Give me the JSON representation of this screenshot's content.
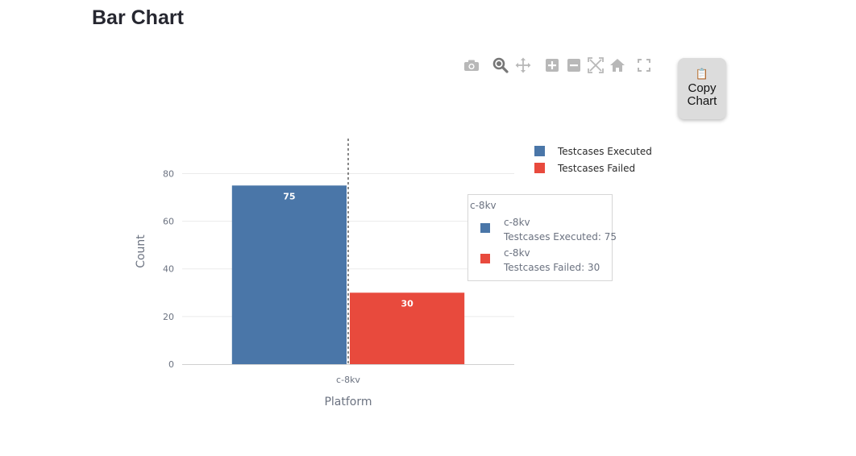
{
  "page": {
    "title": "Bar Chart"
  },
  "toolbar": {
    "buttons": [
      {
        "name": "camera-icon"
      },
      {
        "name": "zoom-icon"
      },
      {
        "name": "pan-icon"
      },
      {
        "name": "zoom-in-icon"
      },
      {
        "name": "zoom-out-icon"
      },
      {
        "name": "autoscale-icon"
      },
      {
        "name": "home-icon"
      },
      {
        "name": "fullscreen-icon"
      }
    ],
    "icon_color": "#b8b8b8",
    "active_icon_color": "#777777"
  },
  "copy_button": {
    "icon": "clipboard-icon",
    "glyph": "📋",
    "label": "Copy Chart"
  },
  "chart_data": {
    "type": "bar",
    "categories": [
      "c-8kv"
    ],
    "series": [
      {
        "name": "Testcases Executed",
        "values": [
          75
        ],
        "color": "#4a76a8"
      },
      {
        "name": "Testcases Failed",
        "values": [
          30
        ],
        "color": "#e84a3d"
      }
    ],
    "xlabel": "Platform",
    "ylabel": "Count",
    "ylim": [
      0,
      92
    ],
    "yticks": [
      0,
      20,
      40,
      60,
      80
    ],
    "grid": true,
    "legend_position": "top-right",
    "hover": {
      "title": "c-8kv",
      "entries": [
        {
          "label": "c-8kv",
          "text": "Testcases Executed: 75",
          "color": "#4a76a8"
        },
        {
          "label": "c-8kv",
          "text": "Testcases Failed: 30",
          "color": "#e84a3d"
        }
      ]
    }
  }
}
